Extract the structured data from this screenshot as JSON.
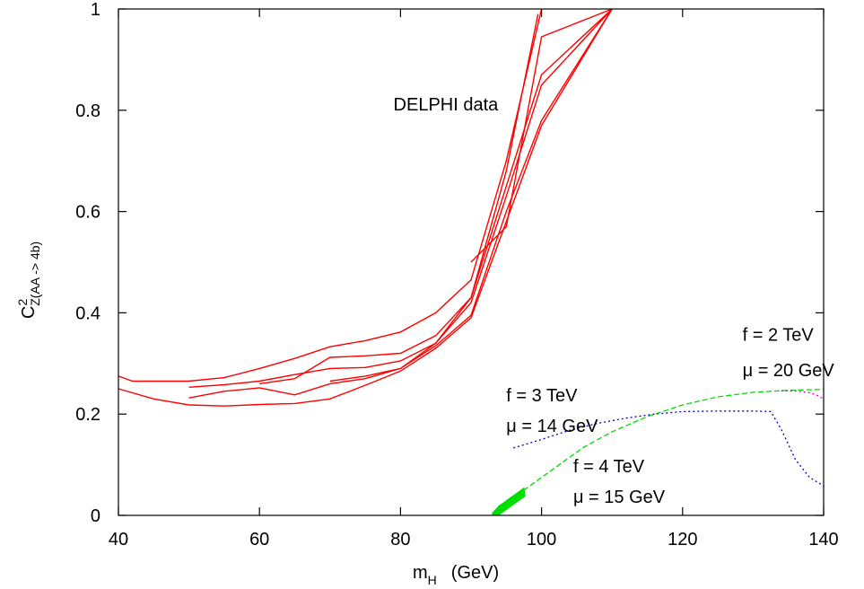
{
  "chart_data": {
    "type": "line",
    "title": "",
    "xlabel": "m",
    "xlabel_sub": "H",
    "xlabel_unit": "(GeV)",
    "ylabel": "C",
    "ylabel_sup": "2",
    "ylabel_sub": "Z(AA -> 4b)",
    "xlim": [
      40,
      140
    ],
    "ylim": [
      0,
      1
    ],
    "x_ticks": [
      "40",
      "60",
      "80",
      "100",
      "120",
      "140"
    ],
    "y_ticks": [
      "0",
      "0.2",
      "0.4",
      "0.6",
      "0.8",
      "1"
    ],
    "grid": false,
    "colors": {
      "delphi": "#ff0000",
      "f3": "#0000cc",
      "f4": "#00dd00",
      "f2": "#cc00cc"
    },
    "series": [
      {
        "group": "delphi",
        "points": [
          [
            40,
            0.275
          ],
          [
            42,
            0.265
          ],
          [
            50,
            0.265
          ],
          [
            55,
            0.272
          ],
          [
            60,
            0.29
          ],
          [
            65,
            0.31
          ],
          [
            70,
            0.333
          ],
          [
            75,
            0.345
          ],
          [
            80,
            0.362
          ],
          [
            85,
            0.4
          ],
          [
            90,
            0.465
          ],
          [
            95,
            0.7
          ],
          [
            100,
            1.0
          ]
        ]
      },
      {
        "group": "delphi",
        "points": [
          [
            40,
            0.25
          ],
          [
            45,
            0.23
          ],
          [
            50,
            0.218
          ],
          [
            55,
            0.216
          ],
          [
            60,
            0.219
          ],
          [
            65,
            0.221
          ],
          [
            70,
            0.23
          ],
          [
            75,
            0.257
          ],
          [
            80,
            0.285
          ],
          [
            85,
            0.33
          ],
          [
            90,
            0.39
          ],
          [
            95,
            0.58
          ],
          [
            100,
            0.77
          ],
          [
            110,
            1.0
          ]
        ]
      },
      {
        "group": "delphi",
        "points": [
          [
            50,
            0.232
          ],
          [
            55,
            0.245
          ],
          [
            60,
            0.252
          ],
          [
            65,
            0.238
          ],
          [
            70,
            0.26
          ],
          [
            75,
            0.27
          ],
          [
            80,
            0.29
          ],
          [
            85,
            0.335
          ],
          [
            90,
            0.395
          ],
          [
            95,
            0.6
          ],
          [
            100,
            0.78
          ],
          [
            110,
            1.0
          ]
        ]
      },
      {
        "group": "delphi",
        "points": [
          [
            50,
            0.253
          ],
          [
            55,
            0.258
          ],
          [
            60,
            0.265
          ],
          [
            65,
            0.278
          ],
          [
            70,
            0.29
          ],
          [
            75,
            0.292
          ],
          [
            80,
            0.305
          ],
          [
            85,
            0.34
          ],
          [
            90,
            0.42
          ],
          [
            95,
            0.63
          ],
          [
            100,
            0.85
          ],
          [
            110,
            1.0
          ]
        ]
      },
      {
        "group": "delphi",
        "points": [
          [
            60,
            0.26
          ],
          [
            65,
            0.27
          ],
          [
            70,
            0.312
          ],
          [
            75,
            0.315
          ],
          [
            80,
            0.32
          ],
          [
            85,
            0.355
          ],
          [
            90,
            0.43
          ],
          [
            95,
            0.65
          ],
          [
            100,
            0.87
          ],
          [
            110,
            1.0
          ]
        ]
      },
      {
        "group": "delphi",
        "points": [
          [
            70,
            0.265
          ],
          [
            75,
            0.275
          ],
          [
            80,
            0.29
          ],
          [
            85,
            0.34
          ],
          [
            90,
            0.43
          ],
          [
            95,
            0.68
          ],
          [
            99.5,
            0.99
          ]
        ]
      },
      {
        "group": "delphi",
        "points": [
          [
            90,
            0.5
          ],
          [
            95,
            0.57
          ],
          [
            100,
            0.945
          ],
          [
            110,
            1.0
          ]
        ]
      },
      {
        "group": "f3",
        "dash": "dotted",
        "points": [
          [
            96,
            0.133
          ],
          [
            100,
            0.15
          ],
          [
            104,
            0.168
          ],
          [
            108,
            0.182
          ],
          [
            112,
            0.192
          ],
          [
            116,
            0.2
          ],
          [
            120,
            0.205
          ],
          [
            125,
            0.206
          ],
          [
            130,
            0.206
          ],
          [
            132.5,
            0.205
          ],
          [
            134,
            0.17
          ],
          [
            136,
            0.11
          ],
          [
            138,
            0.075
          ],
          [
            140,
            0.058
          ]
        ]
      },
      {
        "group": "f4",
        "dash": "dashed",
        "points": [
          [
            93,
            0.0
          ],
          [
            94,
            0.015
          ],
          [
            96,
            0.035
          ],
          [
            98,
            0.055
          ],
          [
            100,
            0.075
          ],
          [
            103,
            0.105
          ],
          [
            106,
            0.135
          ],
          [
            110,
            0.165
          ],
          [
            115,
            0.195
          ],
          [
            120,
            0.218
          ],
          [
            125,
            0.234
          ],
          [
            130,
            0.243
          ],
          [
            135,
            0.247
          ],
          [
            140,
            0.249
          ]
        ]
      },
      {
        "group": "f2",
        "dash": "dotted",
        "points": [
          [
            134,
            0.246
          ],
          [
            136,
            0.246
          ],
          [
            138,
            0.242
          ],
          [
            139,
            0.238
          ],
          [
            140,
            0.23
          ]
        ]
      }
    ],
    "annotations": [
      {
        "text": "DELPHI data",
        "x": 79,
        "y": 0.8
      },
      {
        "text": "f = 3 TeV",
        "x": 95,
        "y": 0.225
      },
      {
        "text": "μ = 14 GeV",
        "x": 95,
        "y": 0.165
      },
      {
        "text": "f = 4 TeV",
        "x": 104.5,
        "y": 0.085
      },
      {
        "text": "μ = 15 GeV",
        "x": 104.5,
        "y": 0.025
      },
      {
        "text": "f = 2 TeV",
        "x": 128.5,
        "y": 0.345
      },
      {
        "text": "μ = 20 GeV",
        "x": 128.5,
        "y": 0.275
      }
    ],
    "green_fill": {
      "x_from": 93,
      "x_to": 97.5
    }
  }
}
